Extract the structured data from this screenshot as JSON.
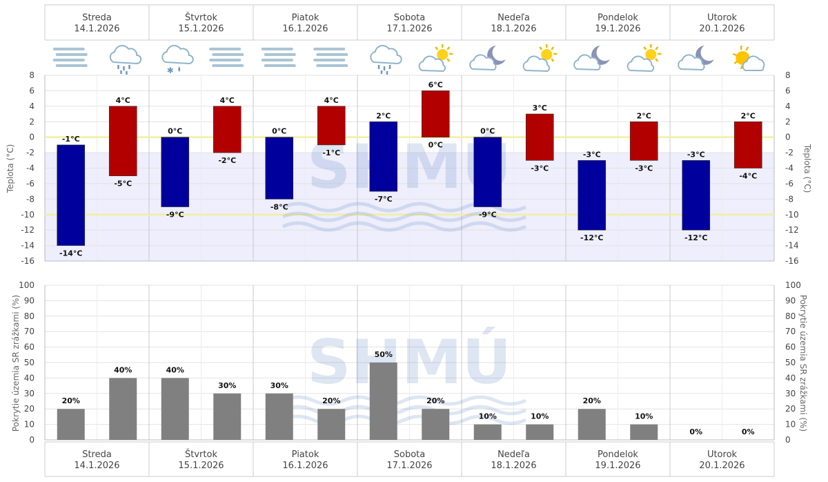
{
  "days": [
    {
      "name": "Streda",
      "date": "14.1.2026",
      "icons": [
        "fog-icon",
        "rain-cloud-icon"
      ]
    },
    {
      "name": "Štvrtok",
      "date": "15.1.2026",
      "icons": [
        "sleet-cloud-icon",
        "fog-icon"
      ]
    },
    {
      "name": "Piatok",
      "date": "16.1.2026",
      "icons": [
        "fog-icon",
        "fog-icon"
      ]
    },
    {
      "name": "Sobota",
      "date": "17.1.2026",
      "icons": [
        "rain-cloud-icon",
        "sun-cloud-icon"
      ]
    },
    {
      "name": "Nedeľa",
      "date": "18.1.2026",
      "icons": [
        "moon-cloud-icon",
        "sun-cloud-icon"
      ]
    },
    {
      "name": "Pondelok",
      "date": "19.1.2026",
      "icons": [
        "moon-cloud-icon",
        "sun-cloud-icon"
      ]
    },
    {
      "name": "Utorok",
      "date": "20.1.2026",
      "icons": [
        "moon-cloud-icon",
        "sun-partly-cloud-icon"
      ]
    }
  ],
  "watermark": "SHMÚ",
  "chart_data": [
    {
      "type": "bar",
      "subtype": "floating-range",
      "ylabel": "Teplota (°C)",
      "ylim": [
        -16,
        8
      ],
      "yticks": [
        8,
        6,
        4,
        2,
        0,
        -2,
        -4,
        -6,
        -8,
        -10,
        -12,
        -14,
        -16
      ],
      "highlight_lines": [
        0,
        -10
      ],
      "unit": "°C",
      "series": [
        {
          "name": "",
          "color": "#00009c",
          "ranges": [
            [
              -14,
              -1
            ],
            [
              -9,
              0
            ],
            [
              -8,
              0
            ],
            [
              -7,
              2
            ],
            [
              -9,
              0
            ],
            [
              -12,
              -3
            ],
            [
              -12,
              -3
            ]
          ],
          "labels_top": [
            "-1°C",
            "0°C",
            "0°C",
            "2°C",
            "0°C",
            "-3°C",
            "-3°C"
          ],
          "labels_bottom": [
            "-14°C",
            "-9°C",
            "-8°C",
            "-7°C",
            "-9°C",
            "-12°C",
            "-12°C"
          ]
        },
        {
          "name": "",
          "color": "#b20000",
          "ranges": [
            [
              -5,
              4
            ],
            [
              -2,
              4
            ],
            [
              -1,
              4
            ],
            [
              0,
              6
            ],
            [
              -3,
              3
            ],
            [
              -3,
              2
            ],
            [
              -4,
              2
            ]
          ],
          "labels_top": [
            "4°C",
            "4°C",
            "4°C",
            "6°C",
            "3°C",
            "2°C",
            "2°C"
          ],
          "labels_bottom": [
            "-5°C",
            "-2°C",
            "-1°C",
            "0°C",
            "-3°C",
            "-3°C",
            "-4°C"
          ]
        }
      ]
    },
    {
      "type": "bar",
      "ylabel": "Pokrytie územia SR zrážkami (%)",
      "ylim": [
        0,
        100
      ],
      "yticks": [
        100,
        90,
        80,
        70,
        60,
        50,
        40,
        30,
        20,
        10,
        0
      ],
      "color": "#808080",
      "values": [
        20,
        40,
        40,
        30,
        30,
        20,
        50,
        20,
        10,
        10,
        20,
        10,
        0,
        0
      ],
      "labels": [
        "20%",
        "40%",
        "40%",
        "30%",
        "30%",
        "20%",
        "50%",
        "20%",
        "10%",
        "10%",
        "20%",
        "10%",
        "0%",
        "0%"
      ]
    }
  ]
}
